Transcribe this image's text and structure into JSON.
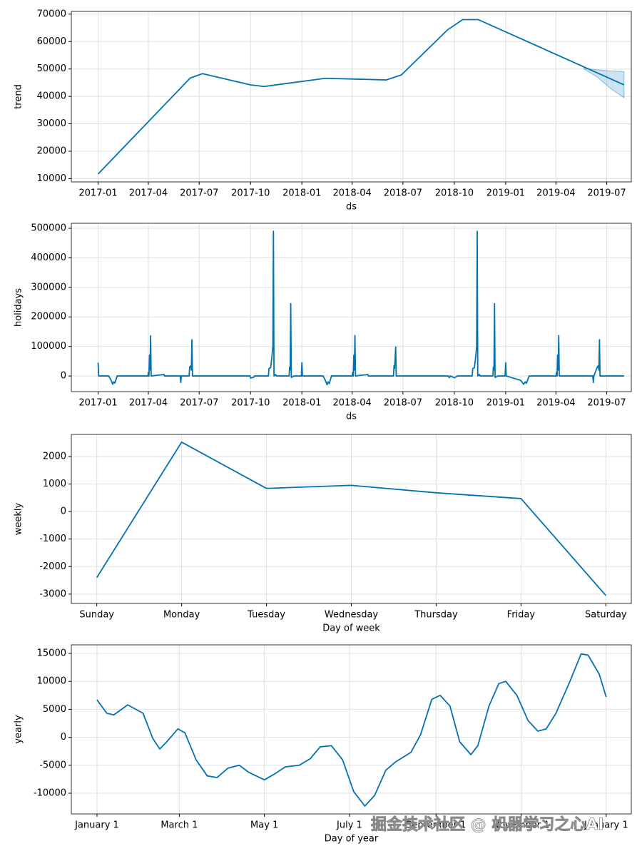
{
  "chart_data": [
    {
      "type": "line",
      "ylabel": "trend",
      "xlabel": "ds",
      "color": "#0072B2",
      "x": [
        "2017-01-01",
        "2017-06-15",
        "2017-07-07",
        "2017-10-01",
        "2017-10-25",
        "2018-02-12",
        "2018-06-01",
        "2018-06-28",
        "2018-09-19",
        "2018-10-16",
        "2018-11-13",
        "2019-08-01"
      ],
      "values": [
        11700,
        46700,
        48300,
        44200,
        43600,
        46600,
        46000,
        47800,
        64300,
        68000,
        68000,
        44200
      ],
      "band": {
        "x": [
          "2019-05-20",
          "2019-06-15",
          "2019-07-07",
          "2019-08-01"
        ],
        "lower": [
          50200,
          46900,
          43000,
          39500
        ],
        "upper": [
          50200,
          49700,
          49300,
          49000
        ]
      },
      "xlim": [
        "2016-11-14",
        "2019-08-14"
      ],
      "xticks": [
        {
          "value": "2017-01-01",
          "label": "2017-01"
        },
        {
          "value": "2017-04-01",
          "label": "2017-04"
        },
        {
          "value": "2017-07-01",
          "label": "2017-07"
        },
        {
          "value": "2017-10-01",
          "label": "2017-10"
        },
        {
          "value": "2018-01-01",
          "label": "2018-01"
        },
        {
          "value": "2018-04-01",
          "label": "2018-04"
        },
        {
          "value": "2018-07-01",
          "label": "2018-07"
        },
        {
          "value": "2018-10-01",
          "label": "2018-10"
        },
        {
          "value": "2019-01-01",
          "label": "2019-01"
        },
        {
          "value": "2019-04-01",
          "label": "2019-04"
        },
        {
          "value": "2019-07-01",
          "label": "2019-07"
        }
      ],
      "ylim": [
        8800,
        71000
      ],
      "yticks": [
        10000,
        20000,
        30000,
        40000,
        50000,
        60000,
        70000
      ],
      "grid": true
    },
    {
      "type": "line",
      "ylabel": "holidays",
      "xlabel": "ds",
      "color": "#0072B2",
      "x": [
        "2017-01-01",
        "2017-01-02",
        "2017-01-20",
        "2017-01-25",
        "2017-01-27",
        "2017-01-29",
        "2017-01-31",
        "2017-02-04",
        "2017-03-31",
        "2017-04-01",
        "2017-04-02",
        "2017-04-03",
        "2017-04-04",
        "2017-04-05",
        "2017-04-06",
        "2017-04-29",
        "2017-04-30",
        "2017-05-28",
        "2017-05-29",
        "2017-05-30",
        "2017-06-13",
        "2017-06-14",
        "2017-06-16",
        "2017-06-17",
        "2017-06-18",
        "2017-06-19",
        "2017-09-30",
        "2017-10-01",
        "2017-10-07",
        "2017-10-08",
        "2017-11-02",
        "2017-11-03",
        "2017-11-06",
        "2017-11-08",
        "2017-11-10",
        "2017-11-11",
        "2017-11-12",
        "2017-11-15",
        "2017-11-16",
        "2017-12-09",
        "2017-12-10",
        "2017-12-11",
        "2017-12-12",
        "2017-12-13",
        "2017-12-18",
        "2017-12-31",
        "2018-01-01",
        "2018-01-02",
        "2018-02-08",
        "2018-02-12",
        "2018-02-15",
        "2018-02-17",
        "2018-02-19",
        "2018-02-23",
        "2018-04-01",
        "2018-04-02",
        "2018-04-03",
        "2018-04-04",
        "2018-04-05",
        "2018-04-06",
        "2018-04-07",
        "2018-04-29",
        "2018-04-30",
        "2018-06-14",
        "2018-06-15",
        "2018-06-16",
        "2018-06-18",
        "2018-06-19",
        "2018-09-20",
        "2018-09-22",
        "2018-09-24",
        "2018-10-01",
        "2018-10-07",
        "2018-11-02",
        "2018-11-03",
        "2018-11-06",
        "2018-11-08",
        "2018-11-10",
        "2018-11-11",
        "2018-11-12",
        "2018-11-15",
        "2018-11-16",
        "2018-12-09",
        "2018-12-10",
        "2018-12-11",
        "2018-12-12",
        "2018-12-13",
        "2018-12-18",
        "2018-12-31",
        "2019-01-01",
        "2019-01-02",
        "2019-01-28",
        "2019-02-02",
        "2019-02-05",
        "2019-02-07",
        "2019-02-12",
        "2019-04-01",
        "2019-04-02",
        "2019-04-03",
        "2019-04-04",
        "2019-04-05",
        "2019-04-06",
        "2019-04-07",
        "2019-06-06",
        "2019-06-07",
        "2019-06-08",
        "2019-06-14",
        "2019-06-16",
        "2019-06-17",
        "2019-06-18",
        "2019-06-19",
        "2019-08-01"
      ],
      "values": [
        45000,
        0,
        0,
        -18000,
        -28000,
        -20000,
        -24000,
        0,
        0,
        12000,
        0,
        70000,
        20000,
        136000,
        0,
        5000,
        0,
        0,
        -22000,
        0,
        0,
        30000,
        35000,
        20000,
        123000,
        0,
        0,
        -7000,
        -4000,
        0,
        0,
        25000,
        28000,
        60000,
        100000,
        490000,
        0,
        5000,
        0,
        0,
        30000,
        20000,
        245000,
        -5000,
        0,
        0,
        45000,
        0,
        0,
        -15000,
        -30000,
        -20000,
        -26000,
        0,
        0,
        12000,
        0,
        70000,
        20000,
        137000,
        0,
        5000,
        0,
        0,
        35000,
        25000,
        98000,
        0,
        0,
        -6000,
        0,
        -6000,
        0,
        0,
        25000,
        28000,
        60000,
        100000,
        490000,
        0,
        5000,
        0,
        0,
        30000,
        20000,
        245000,
        -5000,
        0,
        0,
        45000,
        0,
        -15000,
        -28000,
        -20000,
        -25000,
        0,
        0,
        12000,
        0,
        70000,
        20000,
        137000,
        0,
        0,
        -22000,
        0,
        30000,
        35000,
        20000,
        123000,
        0,
        0
      ],
      "xlim": [
        "2016-11-14",
        "2019-08-14"
      ],
      "xticks": [
        {
          "value": "2017-01-01",
          "label": "2017-01"
        },
        {
          "value": "2017-04-01",
          "label": "2017-04"
        },
        {
          "value": "2017-07-01",
          "label": "2017-07"
        },
        {
          "value": "2017-10-01",
          "label": "2017-10"
        },
        {
          "value": "2018-01-01",
          "label": "2018-01"
        },
        {
          "value": "2018-04-01",
          "label": "2018-04"
        },
        {
          "value": "2018-07-01",
          "label": "2018-07"
        },
        {
          "value": "2018-10-01",
          "label": "2018-10"
        },
        {
          "value": "2019-01-01",
          "label": "2019-01"
        },
        {
          "value": "2019-04-01",
          "label": "2019-04"
        },
        {
          "value": "2019-07-01",
          "label": "2019-07"
        }
      ],
      "ylim": [
        -53000,
        517000
      ],
      "yticks": [
        0,
        100000,
        200000,
        300000,
        400000,
        500000
      ],
      "grid": true
    },
    {
      "type": "line",
      "ylabel": "weekly",
      "xlabel": "Day of week",
      "color": "#0072B2",
      "categories": [
        "Sunday",
        "Monday",
        "Tuesday",
        "Wednesday",
        "Thursday",
        "Friday",
        "Saturday"
      ],
      "values": [
        -2400,
        2520,
        840,
        950,
        680,
        470,
        -3050
      ],
      "ylim": [
        -3340,
        2800
      ],
      "yticks": [
        -3000,
        -2000,
        -1000,
        0,
        1000,
        2000
      ],
      "grid": true
    },
    {
      "type": "line",
      "ylabel": "yearly",
      "xlabel": "Day of year",
      "color": "#0072B2",
      "x": [
        0,
        7,
        12,
        22,
        33,
        40,
        45,
        50,
        58,
        63,
        71,
        79,
        86,
        94,
        102,
        109,
        120,
        127,
        135,
        145,
        153,
        160,
        168,
        176,
        184,
        192,
        199,
        207,
        214,
        225,
        232,
        240,
        246,
        253,
        260,
        268,
        273,
        281,
        288,
        293,
        301,
        309,
        316,
        322,
        329,
        339,
        347,
        352,
        360,
        365
      ],
      "values": [
        6700,
        4300,
        4000,
        5800,
        4300,
        -200,
        -2100,
        -800,
        1500,
        800,
        -4000,
        -6900,
        -7200,
        -5500,
        -5000,
        -6300,
        -7600,
        -6600,
        -5300,
        -5000,
        -3800,
        -1700,
        -1500,
        -4000,
        -9700,
        -12300,
        -10400,
        -5900,
        -4400,
        -2700,
        500,
        6800,
        7500,
        5600,
        -800,
        -3100,
        -1500,
        5600,
        9600,
        10000,
        7500,
        3000,
        1100,
        1500,
        4300,
        10000,
        14900,
        14700,
        11300,
        7200
      ],
      "xlim": [
        -18.4,
        383
      ],
      "xticks": [
        {
          "value": 0,
          "label": "January 1"
        },
        {
          "value": 59,
          "label": "March 1"
        },
        {
          "value": 120,
          "label": "May 1"
        },
        {
          "value": 181,
          "label": "July 1"
        },
        {
          "value": 243,
          "label": "September 1"
        },
        {
          "value": 304,
          "label": "November 1"
        },
        {
          "value": 365,
          "label": "January 1"
        }
      ],
      "ylim": [
        -13700,
        16530
      ],
      "yticks": [
        -10000,
        -5000,
        0,
        5000,
        10000,
        15000
      ],
      "grid": true
    }
  ],
  "watermark": "掘金技术社区 @ 机器学习之心AI"
}
